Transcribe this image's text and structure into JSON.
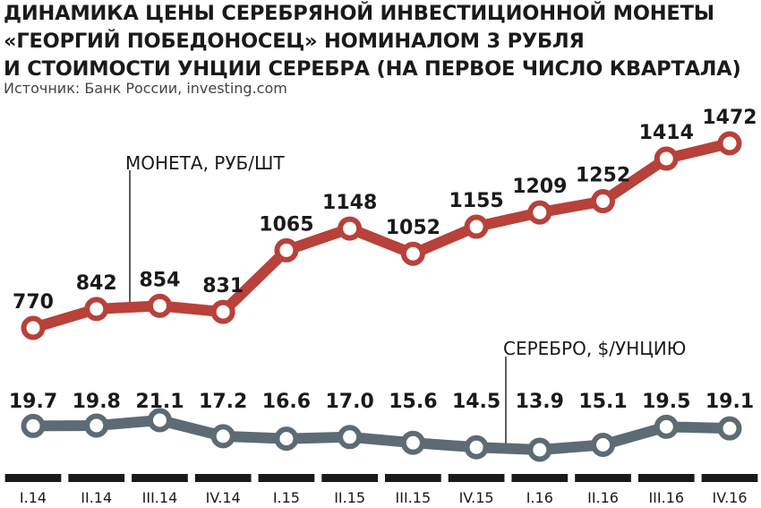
{
  "chart_data": {
    "type": "line",
    "title_lines": [
      "ДИНАМИКА ЦЕНЫ СЕРЕБРЯНОЙ ИНВЕСТИЦИОННОЙ МОНЕТЫ",
      "«ГЕОРГИЙ ПОБЕДОНОСЕЦ» НОМИНАЛОМ 3 РУБЛЯ",
      "И СТОИМОСТИ УНЦИИ СЕРЕБРА (НА ПЕРВОЕ ЧИСЛО КВАРТАЛА)"
    ],
    "source": "Источник: Банк России, investing.com",
    "categories": [
      "I.14",
      "II.14",
      "III.14",
      "IV.14",
      "I.15",
      "II.15",
      "III.15",
      "IV.15",
      "I.16",
      "II.16",
      "III.16",
      "IV.16"
    ],
    "series": [
      {
        "name": "МОНЕТА, РУБ/ШТ",
        "color": "#b8413a",
        "values": [
          770,
          842,
          854,
          831,
          1065,
          1148,
          1052,
          1155,
          1209,
          1252,
          1414,
          1472
        ],
        "labels": [
          "770",
          "842",
          "854",
          "831",
          "1065",
          "1148",
          "1052",
          "1155",
          "1209",
          "1252",
          "1414",
          "1472"
        ]
      },
      {
        "name": "СЕРЕБРО, $/УНЦИЮ",
        "color": "#5c6b74",
        "values": [
          19.7,
          19.8,
          21.1,
          17.2,
          16.6,
          17.0,
          15.6,
          14.5,
          13.9,
          15.1,
          19.5,
          19.1
        ],
        "labels": [
          "19.7",
          "19.8",
          "21.1",
          "17.2",
          "16.6",
          "17.0",
          "15.6",
          "14.5",
          "13.9",
          "15.1",
          "19.5",
          "19.1"
        ]
      }
    ],
    "axis_bar_color": "#1a1a1a"
  }
}
